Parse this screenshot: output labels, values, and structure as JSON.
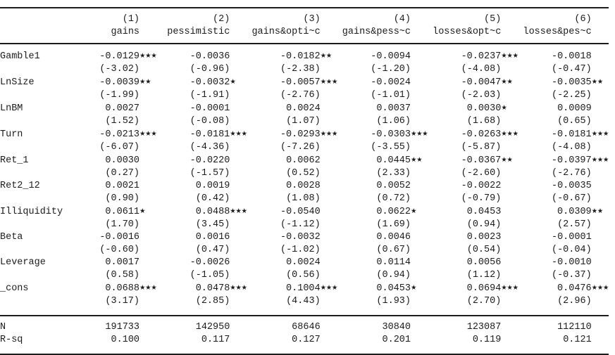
{
  "table": {
    "column_numbers": [
      "(1)",
      "(2)",
      "(3)",
      "(4)",
      "(5)",
      "(6)"
    ],
    "column_labels": [
      "gains",
      "pessimistic",
      "gains&opti~c",
      "gains&pess~c",
      "losses&opt~c",
      "losses&pes~c"
    ],
    "rows": [
      {
        "label": "Gamble1",
        "coefs": [
          "-0.0129***",
          "-0.0036",
          "-0.0182**",
          "-0.0094",
          "-0.0237***",
          "-0.0018"
        ],
        "tstats": [
          "(-3.02)",
          "(-0.96)",
          "(-2.38)",
          "(-1.20)",
          "(-4.08)",
          "(-0.47)"
        ]
      },
      {
        "label": "LnSize",
        "coefs": [
          "-0.0039**",
          "-0.0032*",
          "-0.0057***",
          "-0.0024",
          "-0.0047**",
          "-0.0035**"
        ],
        "tstats": [
          "(-1.99)",
          "(-1.91)",
          "(-2.76)",
          "(-1.01)",
          "(-2.03)",
          "(-2.25)"
        ]
      },
      {
        "label": "LnBM",
        "coefs": [
          "0.0027",
          "-0.0001",
          "0.0024",
          "0.0037",
          "0.0030*",
          "0.0009"
        ],
        "tstats": [
          "(1.52)",
          "(-0.08)",
          "(1.07)",
          "(1.06)",
          "(1.68)",
          "(0.65)"
        ]
      },
      {
        "label": "Turn",
        "coefs": [
          "-0.0213***",
          "-0.0181***",
          "-0.0293***",
          "-0.0303***",
          "-0.0263***",
          "-0.0181***"
        ],
        "tstats": [
          "(-6.07)",
          "(-4.36)",
          "(-7.26)",
          "(-3.55)",
          "(-5.87)",
          "(-4.08)"
        ]
      },
      {
        "label": "Ret_1",
        "coefs": [
          "0.0030",
          "-0.0220",
          "0.0062",
          "0.0445**",
          "-0.0367**",
          "-0.0397***"
        ],
        "tstats": [
          "(0.27)",
          "(-1.57)",
          "(0.52)",
          "(2.33)",
          "(-2.60)",
          "(-2.76)"
        ]
      },
      {
        "label": "Ret2_12",
        "coefs": [
          "0.0021",
          "0.0019",
          "0.0028",
          "0.0052",
          "-0.0022",
          "-0.0035"
        ],
        "tstats": [
          "(0.90)",
          "(0.42)",
          "(1.08)",
          "(0.72)",
          "(-0.79)",
          "(-0.67)"
        ]
      },
      {
        "label": "Illiquidity",
        "coefs": [
          "0.0611*",
          "0.0488***",
          "-0.0540",
          "0.0622*",
          "0.0453",
          "0.0309**"
        ],
        "tstats": [
          "(1.70)",
          "(3.45)",
          "(-1.12)",
          "(1.69)",
          "(0.94)",
          "(2.57)"
        ]
      },
      {
        "label": "Beta",
        "coefs": [
          "-0.0016",
          "0.0016",
          "-0.0032",
          "0.0046",
          "0.0023",
          "-0.0001"
        ],
        "tstats": [
          "(-0.60)",
          "(0.47)",
          "(-1.02)",
          "(0.67)",
          "(0.54)",
          "(-0.04)"
        ]
      },
      {
        "label": "Leverage",
        "coefs": [
          "0.0017",
          "-0.0026",
          "0.0024",
          "0.0114",
          "0.0056",
          "-0.0010"
        ],
        "tstats": [
          "(0.58)",
          "(-1.05)",
          "(0.56)",
          "(0.94)",
          "(1.12)",
          "(-0.37)"
        ]
      },
      {
        "label": "_cons",
        "coefs": [
          "0.0688***",
          "0.0478***",
          "0.1004***",
          "0.0453*",
          "0.0694***",
          "0.0476***"
        ],
        "tstats": [
          "(3.17)",
          "(2.85)",
          "(4.43)",
          "(1.93)",
          "(2.70)",
          "(2.96)"
        ]
      }
    ],
    "stats": [
      {
        "label": "N",
        "values": [
          "191733",
          "142950",
          "68646",
          "30840",
          "123087",
          "112110"
        ]
      },
      {
        "label": "R-sq",
        "values": [
          "0.100",
          "0.117",
          "0.127",
          "0.201",
          "0.119",
          "0.121"
        ]
      }
    ]
  }
}
